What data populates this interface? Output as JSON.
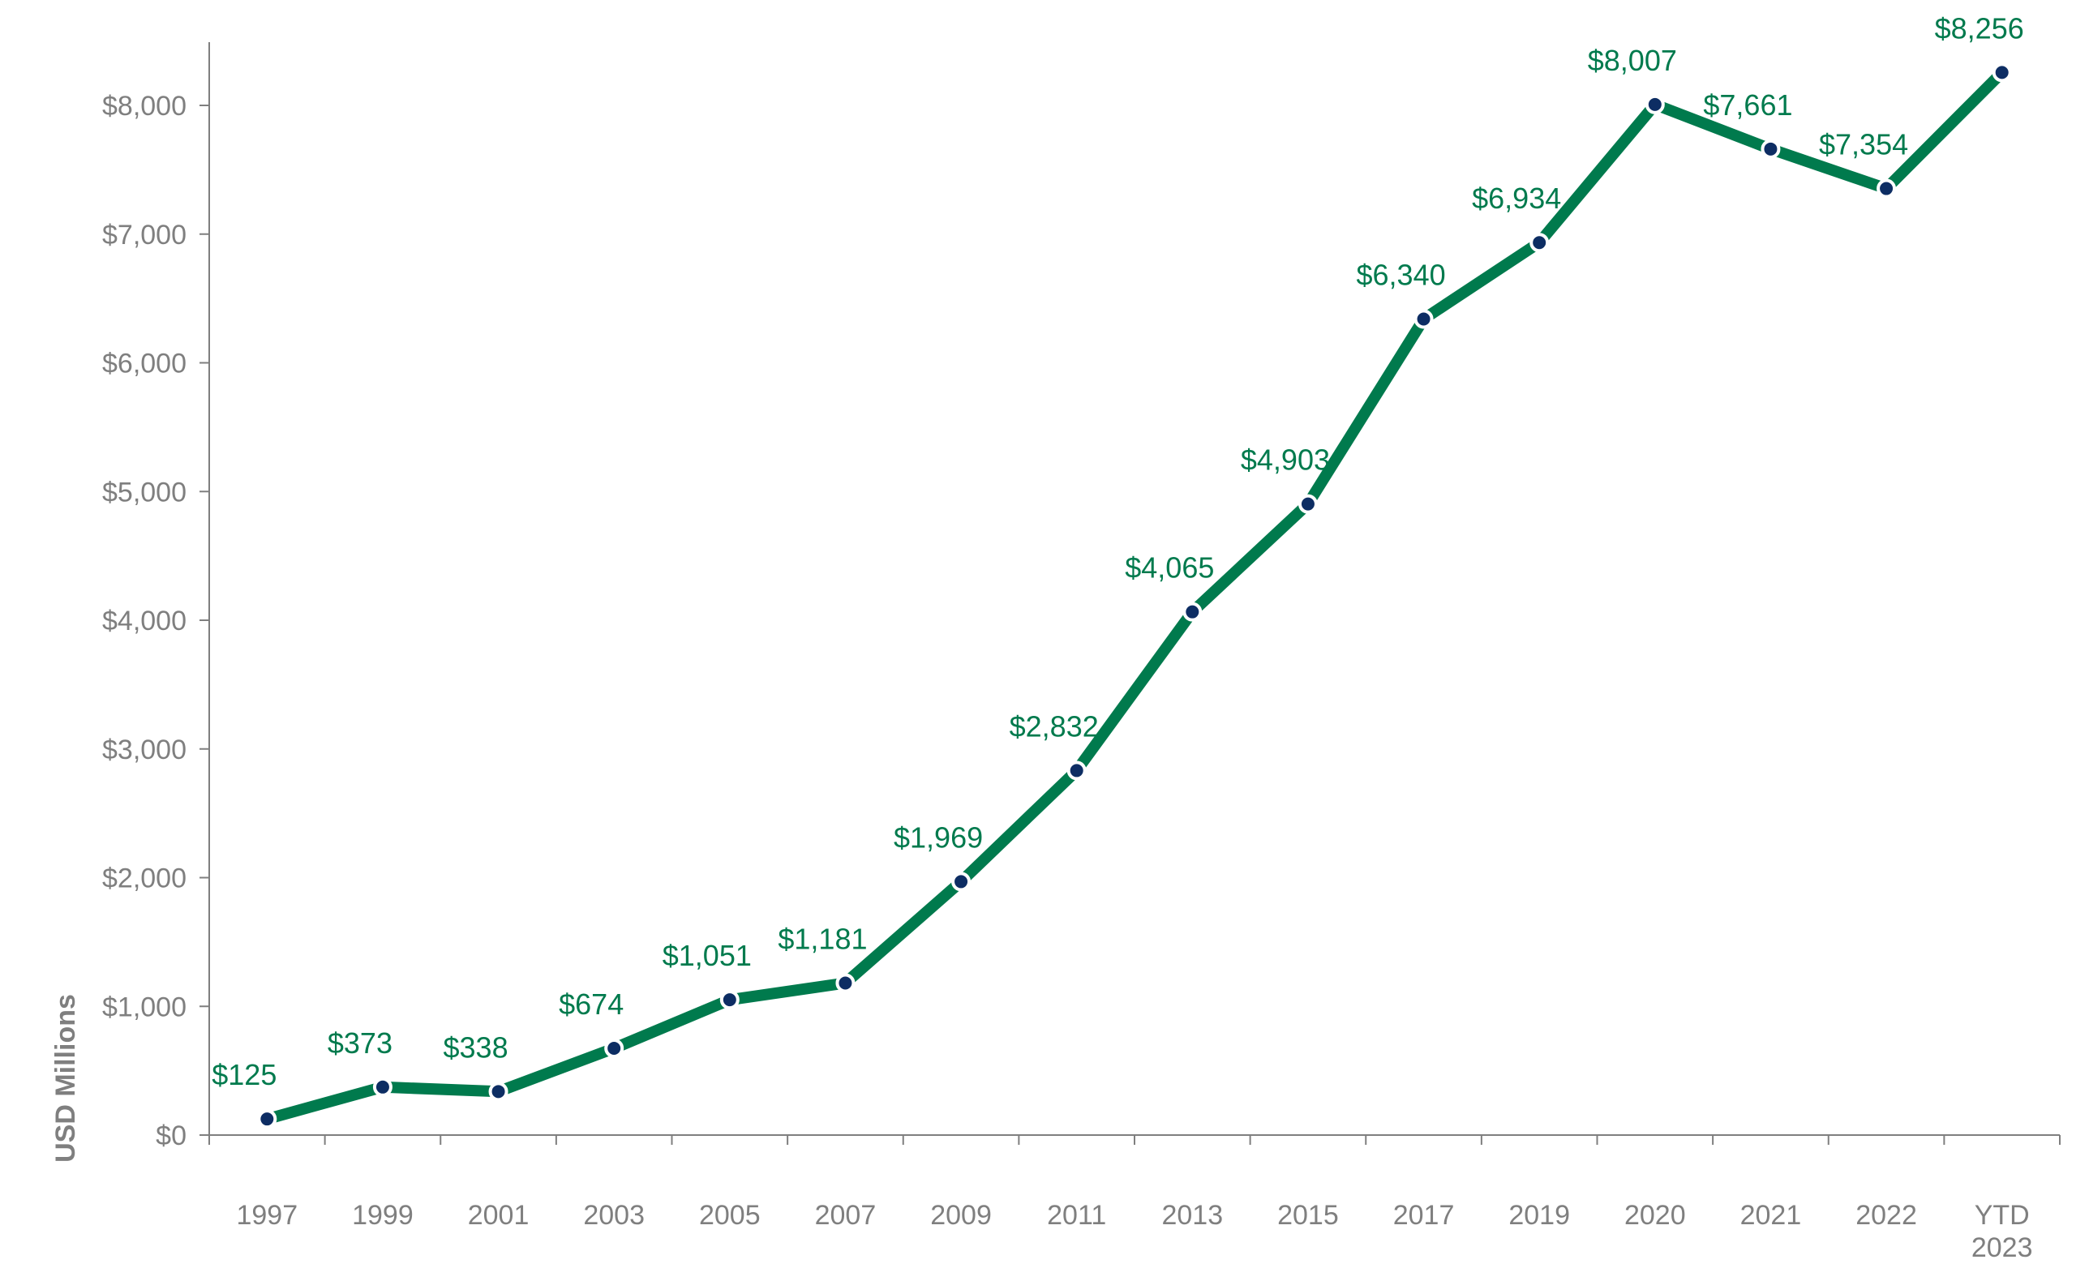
{
  "chart_data": {
    "type": "line",
    "ylabel": "USD Millions",
    "xlabel": "",
    "ylim": [
      0,
      8500
    ],
    "y_ticks": [
      0,
      1000,
      2000,
      3000,
      4000,
      5000,
      6000,
      7000,
      8000
    ],
    "y_tick_labels": [
      "$0",
      "$1,000",
      "$2,000",
      "$3,000",
      "$4,000",
      "$5,000",
      "$6,000",
      "$7,000",
      "$8,000"
    ],
    "categories": [
      [
        "1997"
      ],
      [
        "1999"
      ],
      [
        "2001"
      ],
      [
        "2003"
      ],
      [
        "2005"
      ],
      [
        "2007"
      ],
      [
        "2009"
      ],
      [
        "2011"
      ],
      [
        "2013"
      ],
      [
        "2015"
      ],
      [
        "2017"
      ],
      [
        "2019"
      ],
      [
        "2020"
      ],
      [
        "2021"
      ],
      [
        "2022"
      ],
      [
        "YTD",
        "2023"
      ]
    ],
    "series": [
      {
        "values": [
          125,
          373,
          338,
          674,
          1051,
          1181,
          1969,
          2832,
          4065,
          4903,
          6340,
          6934,
          8007,
          7661,
          7354,
          8256
        ],
        "data_labels": [
          "$125",
          "$373",
          "$338",
          "$674",
          "$1,051",
          "$1,181",
          "$1,969",
          "$2,832",
          "$4,065",
          "$4,903",
          "$6,340",
          "$6,934",
          "$8,007",
          "$7,661",
          "$7,354",
          "$8,256"
        ],
        "line_color": "#007a4d",
        "marker_color": "#0d2d63",
        "marker_edge_color": "#ffffff",
        "label_color": "#007a4d"
      }
    ],
    "grid": false,
    "legend": "none",
    "axis_color": "#7f7f7f"
  }
}
